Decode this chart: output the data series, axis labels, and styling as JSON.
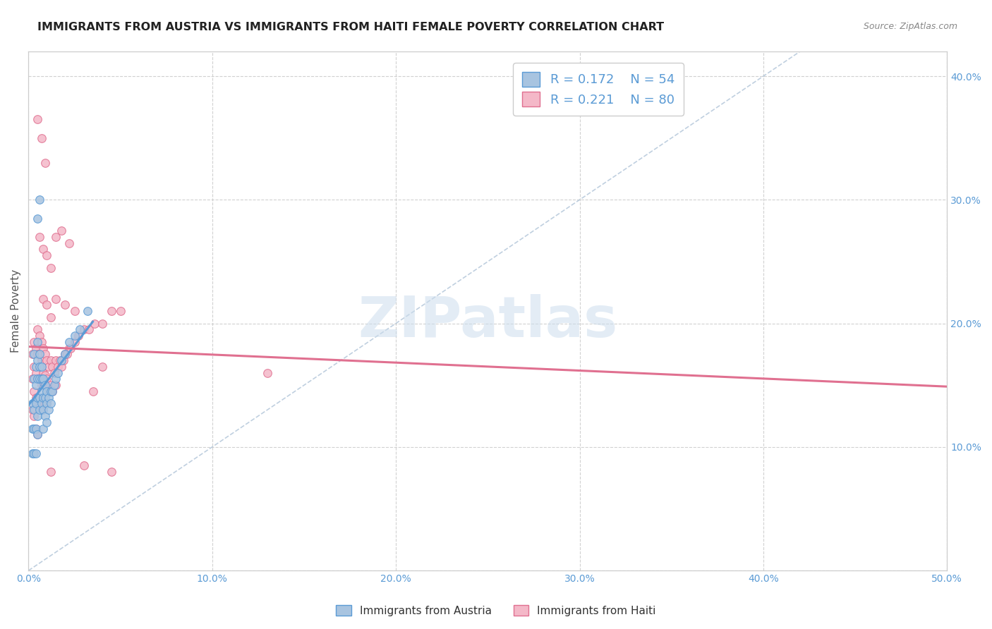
{
  "title": "IMMIGRANTS FROM AUSTRIA VS IMMIGRANTS FROM HAITI FEMALE POVERTY CORRELATION CHART",
  "source": "Source: ZipAtlas.com",
  "ylabel": "Female Poverty",
  "xlim": [
    0.0,
    0.5
  ],
  "ylim": [
    0.0,
    0.42
  ],
  "austria_color": "#a8c4e0",
  "austria_edge_color": "#5b9bd5",
  "haiti_color": "#f4b8c8",
  "haiti_edge_color": "#e07090",
  "austria_R": 0.172,
  "austria_N": 54,
  "haiti_R": 0.221,
  "haiti_N": 80,
  "watermark_text": "ZIPatlas",
  "background_color": "#ffffff",
  "grid_color": "#cccccc",
  "tick_label_color": "#5b9bd5",
  "title_fontsize": 11.5,
  "axis_label_fontsize": 11,
  "tick_fontsize": 10,
  "austria_x": [
    0.002,
    0.002,
    0.002,
    0.003,
    0.003,
    0.003,
    0.003,
    0.003,
    0.004,
    0.004,
    0.004,
    0.004,
    0.004,
    0.005,
    0.005,
    0.005,
    0.005,
    0.005,
    0.005,
    0.006,
    0.006,
    0.006,
    0.006,
    0.006,
    0.007,
    0.007,
    0.007,
    0.007,
    0.008,
    0.008,
    0.008,
    0.008,
    0.009,
    0.009,
    0.009,
    0.01,
    0.01,
    0.01,
    0.011,
    0.011,
    0.012,
    0.012,
    0.013,
    0.014,
    0.015,
    0.016,
    0.018,
    0.02,
    0.022,
    0.025,
    0.028,
    0.032,
    0.005,
    0.006
  ],
  "austria_y": [
    0.135,
    0.115,
    0.095,
    0.175,
    0.155,
    0.13,
    0.115,
    0.095,
    0.165,
    0.15,
    0.135,
    0.115,
    0.095,
    0.185,
    0.17,
    0.155,
    0.14,
    0.125,
    0.11,
    0.175,
    0.165,
    0.155,
    0.14,
    0.13,
    0.165,
    0.155,
    0.145,
    0.135,
    0.155,
    0.14,
    0.13,
    0.115,
    0.15,
    0.14,
    0.125,
    0.145,
    0.135,
    0.12,
    0.14,
    0.13,
    0.145,
    0.135,
    0.145,
    0.15,
    0.155,
    0.16,
    0.17,
    0.175,
    0.185,
    0.19,
    0.195,
    0.21,
    0.285,
    0.3
  ],
  "haiti_x": [
    0.002,
    0.002,
    0.002,
    0.003,
    0.003,
    0.003,
    0.003,
    0.004,
    0.004,
    0.004,
    0.004,
    0.005,
    0.005,
    0.005,
    0.005,
    0.005,
    0.006,
    0.006,
    0.006,
    0.006,
    0.007,
    0.007,
    0.007,
    0.007,
    0.008,
    0.008,
    0.008,
    0.009,
    0.009,
    0.009,
    0.01,
    0.01,
    0.01,
    0.011,
    0.011,
    0.012,
    0.012,
    0.013,
    0.013,
    0.014,
    0.015,
    0.015,
    0.016,
    0.017,
    0.018,
    0.019,
    0.02,
    0.021,
    0.022,
    0.023,
    0.025,
    0.027,
    0.03,
    0.033,
    0.036,
    0.04,
    0.045,
    0.05,
    0.006,
    0.008,
    0.01,
    0.012,
    0.015,
    0.018,
    0.022,
    0.008,
    0.01,
    0.012,
    0.015,
    0.02,
    0.025,
    0.03,
    0.035,
    0.04,
    0.045,
    0.13,
    0.005,
    0.007,
    0.009,
    0.012
  ],
  "haiti_y": [
    0.175,
    0.155,
    0.13,
    0.185,
    0.165,
    0.145,
    0.125,
    0.18,
    0.16,
    0.14,
    0.115,
    0.195,
    0.175,
    0.155,
    0.135,
    0.11,
    0.19,
    0.175,
    0.155,
    0.135,
    0.185,
    0.17,
    0.15,
    0.13,
    0.18,
    0.16,
    0.14,
    0.175,
    0.158,
    0.135,
    0.17,
    0.155,
    0.135,
    0.165,
    0.145,
    0.17,
    0.15,
    0.165,
    0.145,
    0.16,
    0.17,
    0.15,
    0.165,
    0.17,
    0.165,
    0.17,
    0.175,
    0.175,
    0.18,
    0.18,
    0.185,
    0.19,
    0.195,
    0.195,
    0.2,
    0.2,
    0.21,
    0.21,
    0.27,
    0.26,
    0.255,
    0.245,
    0.27,
    0.275,
    0.265,
    0.22,
    0.215,
    0.205,
    0.22,
    0.215,
    0.21,
    0.085,
    0.145,
    0.165,
    0.08,
    0.16,
    0.365,
    0.35,
    0.33,
    0.08
  ]
}
